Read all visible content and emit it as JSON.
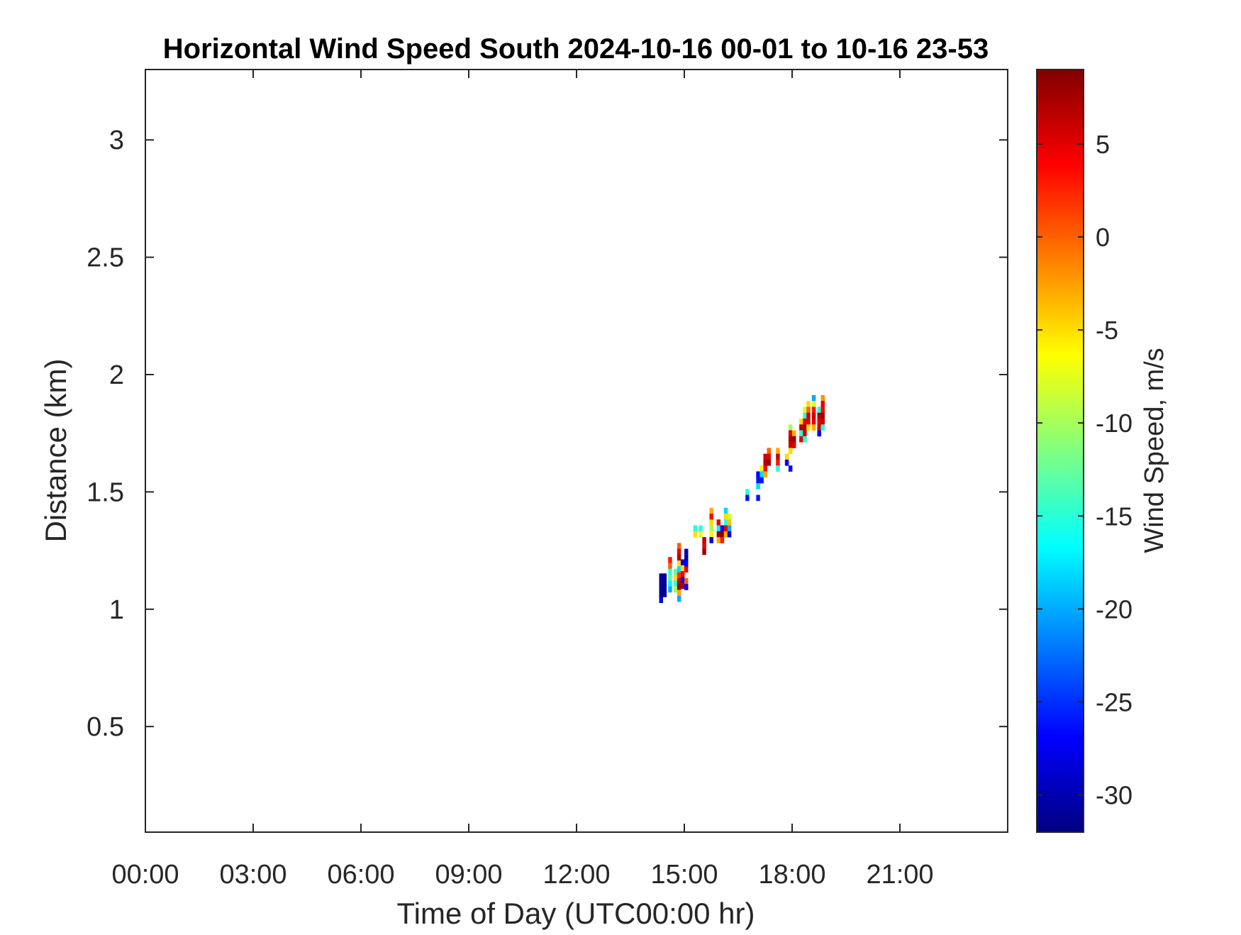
{
  "chart_data": {
    "type": "heatmap",
    "title": "Horizontal Wind Speed South 2024-10-16 00-01 to 10-16 23-53",
    "xlabel": "Time of Day (UTC00:00 hr)",
    "ylabel": "Distance (km)",
    "colorbar_label": "Wind Speed, m/s",
    "x_unit": "hours (UTC)",
    "xlim": [
      0,
      24
    ],
    "ylim": [
      0.05,
      3.3
    ],
    "x_ticks": [
      0,
      3,
      6,
      9,
      12,
      15,
      18,
      21
    ],
    "x_tick_labels": [
      "00:00",
      "03:00",
      "06:00",
      "09:00",
      "12:00",
      "15:00",
      "18:00",
      "21:00"
    ],
    "y_ticks": [
      0.5,
      1,
      1.5,
      2,
      2.5,
      3
    ],
    "y_tick_labels": [
      "0.5",
      "1",
      "1.5",
      "2",
      "2.5",
      "3"
    ],
    "clim": [
      -32,
      9
    ],
    "colorbar_ticks": [
      5,
      0,
      -5,
      -10,
      -15,
      -20,
      -25,
      -30
    ],
    "colorbar_tick_labels": [
      "5",
      "0",
      "-5",
      "-10",
      "-15",
      "-20",
      "-25",
      "-30"
    ],
    "colormap": "jet",
    "grid": false,
    "cell_width_hours": 0.1,
    "cell_height_km": 0.025,
    "points": [
      [
        14.35,
        1.14,
        -31
      ],
      [
        14.35,
        1.115,
        -31
      ],
      [
        14.35,
        1.09,
        -31
      ],
      [
        14.35,
        1.065,
        -31
      ],
      [
        14.35,
        1.04,
        -28
      ],
      [
        14.45,
        1.14,
        -31
      ],
      [
        14.45,
        1.115,
        -31
      ],
      [
        14.45,
        1.09,
        -31
      ],
      [
        14.45,
        1.065,
        -31
      ],
      [
        14.6,
        1.21,
        3
      ],
      [
        14.6,
        1.185,
        0
      ],
      [
        14.6,
        1.16,
        -15
      ],
      [
        14.6,
        1.135,
        -13
      ],
      [
        14.6,
        1.11,
        -17
      ],
      [
        14.6,
        1.085,
        -20
      ],
      [
        14.75,
        1.16,
        -13
      ],
      [
        14.75,
        1.135,
        -5
      ],
      [
        14.75,
        1.11,
        -15
      ],
      [
        14.75,
        1.085,
        -10
      ],
      [
        14.85,
        1.27,
        0
      ],
      [
        14.85,
        1.245,
        5
      ],
      [
        14.85,
        1.22,
        7
      ],
      [
        14.85,
        1.195,
        -5
      ],
      [
        14.85,
        1.17,
        -18
      ],
      [
        14.85,
        1.145,
        2
      ],
      [
        14.85,
        1.12,
        6
      ],
      [
        14.85,
        1.095,
        8
      ],
      [
        14.85,
        1.07,
        -3
      ],
      [
        14.85,
        1.045,
        -20
      ],
      [
        14.95,
        1.2,
        -28
      ],
      [
        14.95,
        1.175,
        -5
      ],
      [
        14.95,
        1.15,
        4
      ],
      [
        14.95,
        1.125,
        -28
      ],
      [
        14.95,
        1.1,
        7
      ],
      [
        15.05,
        1.245,
        -30
      ],
      [
        15.05,
        1.22,
        -31
      ],
      [
        15.05,
        1.195,
        -27
      ],
      [
        15.05,
        1.17,
        5
      ],
      [
        15.05,
        1.12,
        0
      ],
      [
        15.05,
        1.095,
        -27
      ],
      [
        15.3,
        1.345,
        -15
      ],
      [
        15.3,
        1.32,
        -5
      ],
      [
        15.45,
        1.345,
        -15
      ],
      [
        15.45,
        1.32,
        -8
      ],
      [
        15.55,
        1.295,
        6
      ],
      [
        15.55,
        1.27,
        5
      ],
      [
        15.55,
        1.245,
        8
      ],
      [
        15.75,
        1.42,
        -3
      ],
      [
        15.75,
        1.395,
        4
      ],
      [
        15.75,
        1.37,
        -5
      ],
      [
        15.75,
        1.345,
        -10
      ],
      [
        15.75,
        1.32,
        -6
      ],
      [
        15.75,
        1.295,
        -28
      ],
      [
        15.95,
        1.37,
        5
      ],
      [
        15.95,
        1.345,
        -17
      ],
      [
        15.95,
        1.32,
        8
      ],
      [
        15.95,
        1.295,
        -3
      ],
      [
        16.05,
        1.345,
        -28
      ],
      [
        16.05,
        1.32,
        9
      ],
      [
        16.05,
        1.295,
        3
      ],
      [
        16.15,
        1.42,
        -18
      ],
      [
        16.15,
        1.395,
        -5
      ],
      [
        16.15,
        1.37,
        -15
      ],
      [
        16.15,
        1.345,
        5
      ],
      [
        16.15,
        1.32,
        -3
      ],
      [
        16.25,
        1.395,
        -8
      ],
      [
        16.25,
        1.37,
        -4
      ],
      [
        16.25,
        1.345,
        -20
      ],
      [
        16.25,
        1.32,
        -28
      ],
      [
        16.75,
        1.5,
        -15
      ],
      [
        16.75,
        1.475,
        -26
      ],
      [
        17.05,
        1.575,
        -27
      ],
      [
        17.05,
        1.55,
        -26
      ],
      [
        17.05,
        1.525,
        -18
      ],
      [
        17.05,
        1.475,
        -26
      ],
      [
        17.15,
        1.6,
        -6
      ],
      [
        17.15,
        1.575,
        -18
      ],
      [
        17.15,
        1.55,
        -26
      ],
      [
        17.25,
        1.65,
        6
      ],
      [
        17.25,
        1.625,
        7
      ],
      [
        17.25,
        1.6,
        4
      ],
      [
        17.25,
        1.575,
        -3
      ],
      [
        17.35,
        1.675,
        0
      ],
      [
        17.35,
        1.65,
        5
      ],
      [
        17.35,
        1.625,
        8
      ],
      [
        17.6,
        1.675,
        -3
      ],
      [
        17.6,
        1.65,
        6
      ],
      [
        17.6,
        1.625,
        3
      ],
      [
        17.6,
        1.6,
        -15
      ],
      [
        17.85,
        1.65,
        -5
      ],
      [
        17.85,
        1.625,
        -27
      ],
      [
        17.95,
        1.775,
        -10
      ],
      [
        17.95,
        1.75,
        5
      ],
      [
        17.95,
        1.725,
        7
      ],
      [
        17.95,
        1.7,
        6
      ],
      [
        17.95,
        1.675,
        -5
      ],
      [
        17.95,
        1.6,
        -27
      ],
      [
        18.05,
        1.75,
        -3
      ],
      [
        18.05,
        1.725,
        8
      ],
      [
        18.05,
        1.7,
        5
      ],
      [
        18.25,
        1.8,
        -5
      ],
      [
        18.25,
        1.775,
        7
      ],
      [
        18.25,
        1.75,
        -15
      ],
      [
        18.25,
        1.725,
        5
      ],
      [
        18.35,
        1.85,
        -8
      ],
      [
        18.35,
        1.825,
        -15
      ],
      [
        18.35,
        1.8,
        5
      ],
      [
        18.35,
        1.775,
        7
      ],
      [
        18.35,
        1.75,
        6
      ],
      [
        18.35,
        1.725,
        -15
      ],
      [
        18.45,
        1.875,
        -5
      ],
      [
        18.45,
        1.85,
        0
      ],
      [
        18.45,
        1.825,
        6
      ],
      [
        18.45,
        1.8,
        5
      ],
      [
        18.45,
        1.775,
        -5
      ],
      [
        18.6,
        1.9,
        -20
      ],
      [
        18.6,
        1.875,
        -8
      ],
      [
        18.6,
        1.85,
        3
      ],
      [
        18.6,
        1.825,
        6
      ],
      [
        18.6,
        1.8,
        5
      ],
      [
        18.6,
        1.775,
        -3
      ],
      [
        18.75,
        1.85,
        -15
      ],
      [
        18.75,
        1.825,
        7
      ],
      [
        18.75,
        1.8,
        5
      ],
      [
        18.75,
        1.775,
        6
      ],
      [
        18.75,
        1.75,
        -28
      ],
      [
        18.85,
        1.9,
        -2
      ],
      [
        18.85,
        1.875,
        5
      ],
      [
        18.85,
        1.85,
        4
      ],
      [
        18.85,
        1.825,
        8
      ],
      [
        18.85,
        1.8,
        6
      ],
      [
        18.85,
        1.775,
        -15
      ]
    ]
  }
}
